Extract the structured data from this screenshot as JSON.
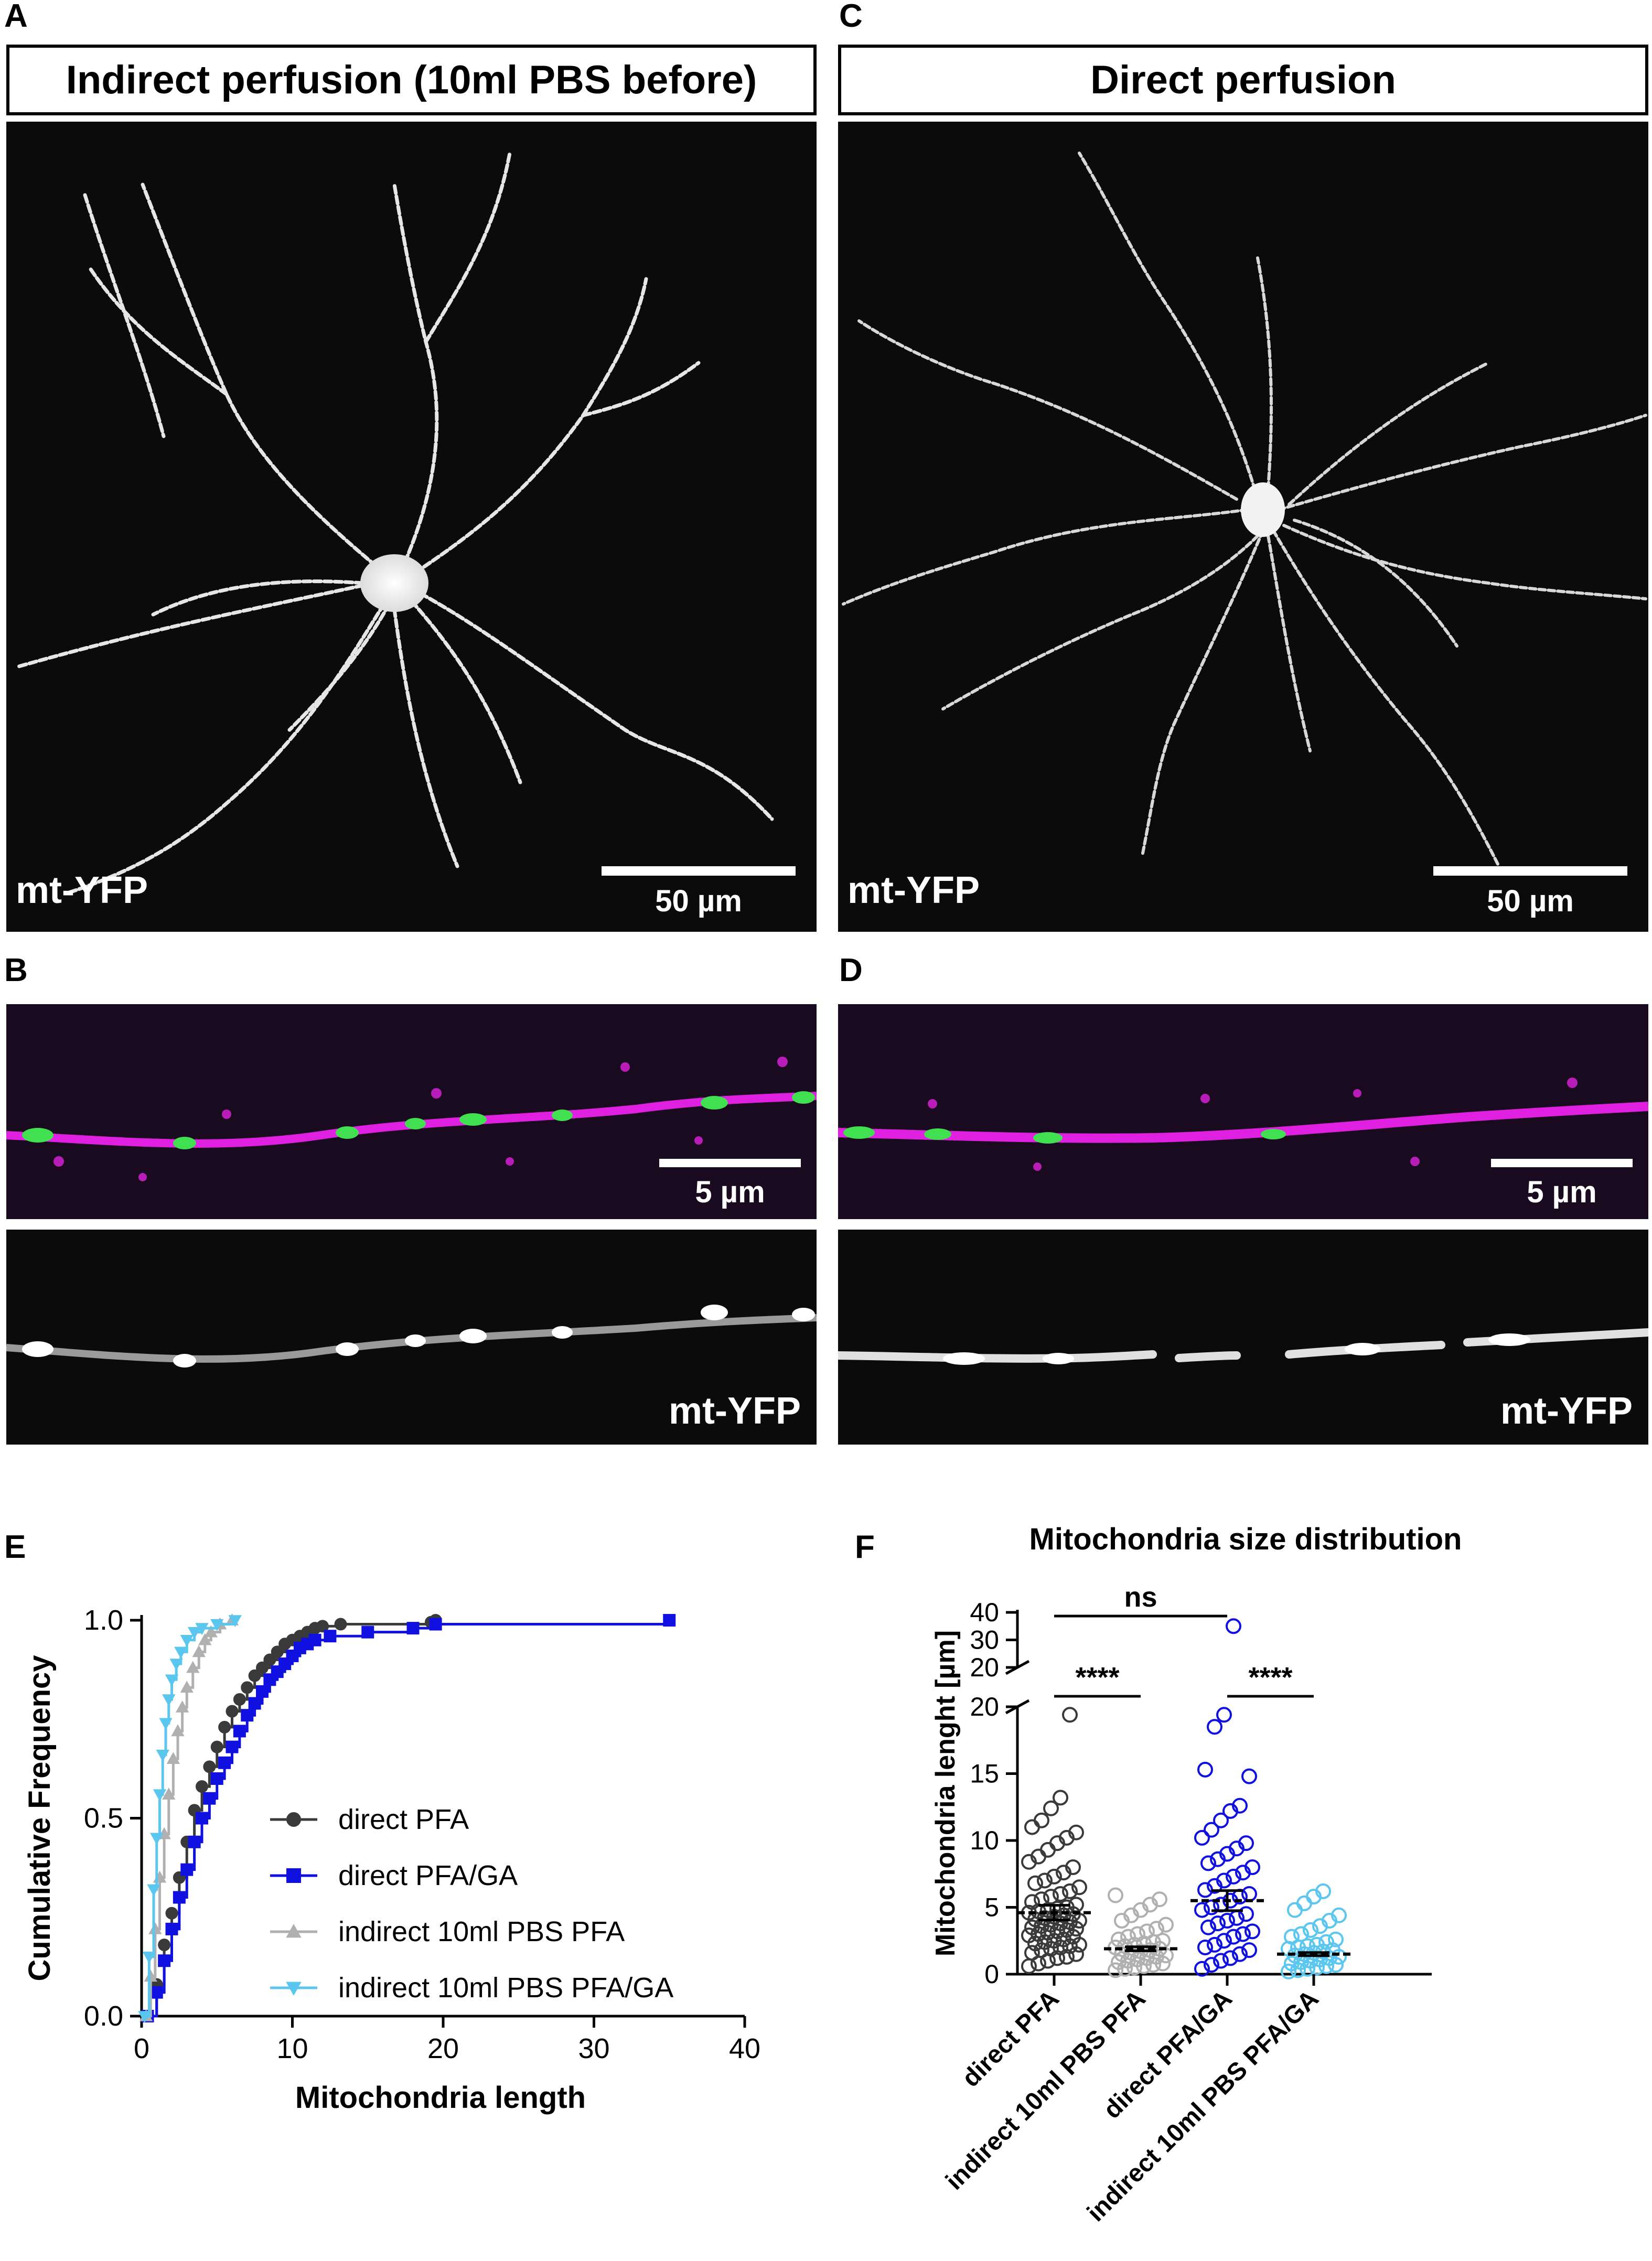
{
  "panels": {
    "A": {
      "letter": "A",
      "title": "Indirect perfusion (10ml PBS before)",
      "stain": "mt-YFP",
      "scale": "50 µm"
    },
    "B": {
      "letter": "B",
      "scale": "5 µm",
      "stain": "mt-YFP"
    },
    "C": {
      "letter": "C",
      "title": "Direct perfusion",
      "stain": "mt-YFP",
      "scale": "50 µm"
    },
    "D": {
      "letter": "D",
      "scale": "5 µm",
      "stain": "mt-YFP"
    },
    "E": {
      "letter": "E"
    },
    "F": {
      "letter": "F"
    }
  },
  "colors": {
    "direct_pfa": "#3a3a3a",
    "direct_pfa_ga": "#1010e0",
    "indirect_pfa": "#b0b0b0",
    "indirect_pfa_ga": "#5bc6ee",
    "magenta": "#e020e0",
    "green": "#40e050"
  },
  "chart_data": [
    {
      "type": "line",
      "panel": "E",
      "xlabel": "Mitochondria length",
      "ylabel": "Cumulative Frequency",
      "xlim": [
        0,
        40
      ],
      "ylim": [
        0,
        1
      ],
      "xticks": [
        "0",
        "10",
        "20",
        "30",
        "40"
      ],
      "yticks": [
        "0.0",
        "0.5",
        "1.0"
      ],
      "legend_position": "center-right",
      "series": [
        {
          "name": "direct PFA",
          "marker": "circle",
          "color": "#3a3a3a",
          "x": [
            0.4,
            1.0,
            1.5,
            2.0,
            2.5,
            3.0,
            3.5,
            4.0,
            4.5,
            5.0,
            5.5,
            6.0,
            6.5,
            7.0,
            7.5,
            8.0,
            8.5,
            9.0,
            9.5,
            10.0,
            10.5,
            11.0,
            11.5,
            12.0,
            13.2,
            19.2,
            19.5
          ],
          "y": [
            0.0,
            0.08,
            0.18,
            0.26,
            0.35,
            0.44,
            0.52,
            0.58,
            0.63,
            0.68,
            0.73,
            0.77,
            0.8,
            0.83,
            0.86,
            0.88,
            0.9,
            0.92,
            0.94,
            0.95,
            0.96,
            0.97,
            0.98,
            0.985,
            0.99,
            0.995,
            1.0
          ]
        },
        {
          "name": "direct PFA/GA",
          "marker": "square",
          "color": "#1010e0",
          "x": [
            0.4,
            1.0,
            1.5,
            2.0,
            2.5,
            3.0,
            3.5,
            4.0,
            4.5,
            5.0,
            5.5,
            6.0,
            6.5,
            7.0,
            7.5,
            8.0,
            8.5,
            9.0,
            9.5,
            10.0,
            10.5,
            11.0,
            11.5,
            12.5,
            15.0,
            18.0,
            19.5,
            35.0
          ],
          "y": [
            0.0,
            0.06,
            0.14,
            0.22,
            0.3,
            0.37,
            0.44,
            0.5,
            0.55,
            0.6,
            0.64,
            0.68,
            0.72,
            0.76,
            0.79,
            0.82,
            0.85,
            0.87,
            0.89,
            0.91,
            0.93,
            0.94,
            0.95,
            0.96,
            0.97,
            0.98,
            0.99,
            1.0
          ]
        },
        {
          "name": "indirect 10ml PBS PFA",
          "marker": "triangle-up",
          "color": "#b0b0b0",
          "x": [
            0.3,
            0.6,
            0.9,
            1.2,
            1.5,
            1.8,
            2.1,
            2.4,
            2.7,
            3.0,
            3.4,
            3.8,
            4.2,
            4.6,
            5.2,
            6.0
          ],
          "y": [
            0.0,
            0.1,
            0.22,
            0.35,
            0.46,
            0.56,
            0.65,
            0.72,
            0.78,
            0.83,
            0.88,
            0.92,
            0.95,
            0.97,
            0.99,
            1.0
          ]
        },
        {
          "name": "indirect 10ml PBS PFA/GA",
          "marker": "triangle-down",
          "color": "#5bc6ee",
          "x": [
            0.2,
            0.5,
            0.8,
            1.0,
            1.2,
            1.4,
            1.6,
            1.8,
            2.0,
            2.3,
            2.6,
            3.0,
            3.5,
            4.0,
            5.0,
            6.2
          ],
          "y": [
            0.0,
            0.15,
            0.32,
            0.45,
            0.56,
            0.66,
            0.74,
            0.8,
            0.85,
            0.89,
            0.92,
            0.95,
            0.97,
            0.98,
            0.99,
            1.0
          ]
        }
      ]
    },
    {
      "type": "scatter",
      "panel": "F",
      "title": "Mitochondria size distribution",
      "ylabel": "Mitochondria lenght [µm]",
      "yaxis_break": {
        "lower": [
          0,
          20
        ],
        "upper": [
          20,
          40
        ]
      },
      "yticks_lower": [
        "0",
        "5",
        "10",
        "15",
        "20"
      ],
      "yticks_upper": [
        "20",
        "30",
        "40"
      ],
      "categories": [
        "direct PFA",
        "indirect 10ml PBS PFA",
        "direct PFA/GA",
        "indirect 10ml PBS PFA/GA"
      ],
      "means": [
        4.6,
        1.9,
        5.5,
        1.5
      ],
      "sem": [
        0.55,
        0.15,
        0.75,
        0.12
      ],
      "colors": [
        "#3a3a3a",
        "#b0b0b0",
        "#1010e0",
        "#5bc6ee"
      ],
      "points": [
        [
          0.6,
          0.8,
          1.0,
          1.2,
          1.3,
          1.5,
          1.6,
          1.8,
          1.9,
          2.0,
          2.1,
          2.2,
          2.3,
          2.4,
          2.5,
          2.6,
          2.8,
          2.9,
          3.0,
          3.1,
          3.2,
          3.3,
          3.4,
          3.5,
          3.6,
          3.7,
          3.8,
          3.9,
          4.0,
          4.1,
          4.2,
          4.3,
          4.4,
          4.5,
          4.6,
          4.7,
          4.8,
          4.9,
          5.0,
          5.2,
          5.4,
          5.6,
          5.8,
          6.0,
          6.2,
          6.5,
          6.8,
          7.0,
          7.3,
          7.6,
          8.0,
          8.4,
          8.8,
          9.3,
          9.8,
          10.2,
          10.6,
          11.0,
          11.5,
          12.4,
          13.2,
          19.4
        ],
        [
          0.3,
          0.4,
          0.5,
          0.6,
          0.7,
          0.8,
          0.9,
          1.0,
          1.1,
          1.2,
          1.3,
          1.4,
          1.5,
          1.6,
          1.7,
          1.8,
          1.9,
          2.0,
          2.1,
          2.2,
          2.3,
          2.4,
          2.5,
          2.6,
          2.8,
          3.0,
          3.2,
          3.4,
          3.7,
          4.0,
          4.4,
          4.8,
          5.2,
          5.6,
          5.9
        ],
        [
          0.4,
          0.7,
          1.0,
          1.2,
          1.5,
          1.8,
          2.0,
          2.2,
          2.5,
          2.8,
          3.0,
          3.2,
          3.5,
          3.8,
          4.0,
          4.2,
          4.5,
          4.8,
          5.0,
          5.2,
          5.5,
          5.8,
          6.0,
          6.3,
          6.6,
          7.0,
          7.3,
          7.6,
          8.0,
          8.3,
          8.6,
          9.0,
          9.4,
          9.8,
          10.2,
          10.8,
          11.5,
          12.2,
          12.6,
          14.8,
          15.3,
          18.5,
          19.4,
          35.0
        ],
        [
          0.2,
          0.3,
          0.4,
          0.5,
          0.6,
          0.7,
          0.8,
          0.9,
          1.0,
          1.1,
          1.2,
          1.3,
          1.4,
          1.5,
          1.6,
          1.7,
          1.8,
          1.9,
          2.0,
          2.1,
          2.2,
          2.4,
          2.6,
          2.8,
          3.0,
          3.3,
          3.6,
          4.0,
          4.4,
          4.8,
          5.3,
          5.8,
          6.2
        ]
      ],
      "comparisons": [
        {
          "from": 0,
          "to": 2,
          "label": "ns",
          "level": "upper"
        },
        {
          "from": 0,
          "to": 1,
          "label": "****",
          "level": "lower"
        },
        {
          "from": 2,
          "to": 3,
          "label": "****",
          "level": "lower"
        }
      ]
    }
  ]
}
